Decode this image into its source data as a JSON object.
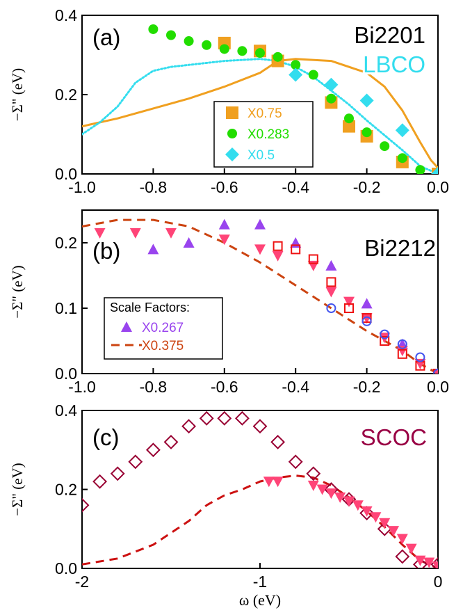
{
  "chart_data": [
    {
      "panel_label": "(a)",
      "type": "scatter",
      "ylabel": "−Σ\" (eV)",
      "xlim": [
        -1.0,
        0.0
      ],
      "ylim": [
        0.0,
        0.4
      ],
      "xticks": [
        "-1.0",
        "-0.8",
        "-0.6",
        "-0.4",
        "-0.2",
        "0.0"
      ],
      "xtick_values": [
        -1.0,
        -0.8,
        -0.6,
        -0.4,
        -0.2,
        0.0
      ],
      "yticks": [
        "0.0",
        "0.2",
        "0.4"
      ],
      "ytick_values": [
        0.0,
        0.2,
        0.4
      ],
      "annotations": [
        {
          "text": "Bi2201",
          "color": "#000000"
        },
        {
          "text": "LBCO",
          "color": "#33DDEE"
        }
      ],
      "legend_placement": "bottom-center",
      "series": [
        {
          "name": "X0.75",
          "marker": "square-filled",
          "color": "#F0A020",
          "x": [
            -0.6,
            -0.5,
            -0.45,
            -0.3,
            -0.25,
            -0.2,
            -0.1,
            0.0
          ],
          "y": [
            0.33,
            0.31,
            0.285,
            0.18,
            0.12,
            0.095,
            0.03,
            0.0
          ]
        },
        {
          "name": "X0.283",
          "marker": "circle-filled",
          "color": "#22DD00",
          "x": [
            -0.8,
            -0.75,
            -0.7,
            -0.65,
            -0.6,
            -0.55,
            -0.5,
            -0.45,
            -0.4,
            -0.35,
            -0.3,
            -0.25,
            -0.2,
            -0.15,
            -0.1,
            -0.05,
            0.0
          ],
          "y": [
            0.365,
            0.35,
            0.335,
            0.325,
            0.315,
            0.31,
            0.305,
            0.295,
            0.275,
            0.25,
            0.19,
            0.14,
            0.105,
            0.07,
            0.04,
            0.01,
            0.0
          ]
        },
        {
          "name": "X0.5",
          "marker": "diamond-filled",
          "color": "#33DDEE",
          "x": [
            -0.4,
            -0.3,
            -0.2,
            -0.1,
            0.0
          ],
          "y": [
            0.25,
            0.225,
            0.185,
            0.11,
            0.0
          ]
        }
      ],
      "curves": [
        {
          "style": "solid",
          "color": "#F0A020",
          "x": [
            -1.0,
            -0.9,
            -0.8,
            -0.7,
            -0.6,
            -0.5,
            -0.45,
            -0.4,
            -0.3,
            -0.2,
            -0.15,
            -0.1,
            -0.05,
            -0.02,
            0.0
          ],
          "y": [
            0.12,
            0.14,
            0.165,
            0.19,
            0.22,
            0.255,
            0.285,
            0.29,
            0.285,
            0.255,
            0.22,
            0.16,
            0.08,
            0.035,
            0.015
          ]
        },
        {
          "style": "dotted",
          "color": "#33DDEE",
          "x": [
            -1.0,
            -0.95,
            -0.9,
            -0.85,
            -0.8,
            -0.75,
            -0.7,
            -0.6,
            -0.5,
            -0.45,
            -0.4,
            -0.35,
            -0.3,
            -0.25,
            -0.2,
            -0.1,
            -0.05,
            0.0
          ],
          "y": [
            0.1,
            0.13,
            0.17,
            0.23,
            0.26,
            0.27,
            0.275,
            0.285,
            0.29,
            0.285,
            0.27,
            0.245,
            0.21,
            0.175,
            0.135,
            0.06,
            0.02,
            0.0
          ]
        }
      ]
    },
    {
      "panel_label": "(b)",
      "type": "scatter",
      "ylabel": "−Σ\" (eV)",
      "xlim": [
        -1.0,
        0.0
      ],
      "ylim": [
        0.0,
        0.25
      ],
      "xticks": [
        "-1.0",
        "-0.8",
        "-0.6",
        "-0.4",
        "-0.2",
        "0.0"
      ],
      "xtick_values": [
        -1.0,
        -0.8,
        -0.6,
        -0.4,
        -0.2,
        0.0
      ],
      "yticks": [
        "0.0",
        "0.1",
        "0.2"
      ],
      "ytick_values": [
        0.0,
        0.1,
        0.2
      ],
      "annotations": [
        {
          "text": "Bi2212",
          "color": "#000000"
        }
      ],
      "legend_title": "Scale Factors:",
      "legend_placement": "bottom-left",
      "series": [
        {
          "name": "X0.267",
          "marker": "triangle-up-filled",
          "color": "#9944EE",
          "x": [
            -0.8,
            -0.7,
            -0.6,
            -0.5,
            -0.4,
            -0.3,
            -0.2,
            -0.1,
            0.0
          ],
          "y": [
            0.19,
            0.2,
            0.228,
            0.228,
            0.2,
            0.165,
            0.107,
            0.045,
            0.0
          ]
        },
        {
          "marker": "triangle-down-filled",
          "color": "#FF4477",
          "x": [
            -0.95,
            -0.85,
            -0.75,
            -0.6,
            -0.5,
            -0.45,
            -0.35,
            -0.3,
            -0.25,
            -0.2,
            -0.15,
            -0.1,
            -0.05,
            0.0
          ],
          "y": [
            0.215,
            0.215,
            0.215,
            0.205,
            0.19,
            0.18,
            0.165,
            0.125,
            0.11,
            0.085,
            0.055,
            0.035,
            0.015,
            0.0
          ]
        },
        {
          "marker": "square-open",
          "color": "#EE1111",
          "x": [
            -0.45,
            -0.4,
            -0.35,
            -0.3,
            -0.25,
            -0.2,
            -0.15,
            -0.1,
            -0.05,
            0.0
          ],
          "y": [
            0.195,
            0.19,
            0.175,
            0.14,
            0.1,
            0.085,
            0.05,
            0.03,
            0.012,
            0.0
          ]
        },
        {
          "marker": "circle-open",
          "color": "#4455EE",
          "x": [
            -0.3,
            -0.2,
            -0.15,
            -0.1,
            -0.05,
            0.0
          ],
          "y": [
            0.1,
            0.08,
            0.06,
            0.045,
            0.025,
            0.0
          ]
        }
      ],
      "curves": [
        {
          "name": "X0.375",
          "style": "dashed",
          "color": "#CC4411",
          "x": [
            -1.0,
            -0.9,
            -0.8,
            -0.7,
            -0.6,
            -0.5,
            -0.4,
            -0.3,
            -0.2,
            -0.1,
            -0.05,
            0.0
          ],
          "y": [
            0.225,
            0.235,
            0.235,
            0.225,
            0.2,
            0.17,
            0.135,
            0.1,
            0.065,
            0.035,
            0.015,
            0.0
          ]
        }
      ]
    },
    {
      "panel_label": "(c)",
      "type": "scatter",
      "ylabel": "−Σ\" (eV)",
      "xlabel": "ω (eV)",
      "xlim": [
        -2.0,
        0.0
      ],
      "ylim": [
        0.0,
        0.4
      ],
      "xticks": [
        "-2",
        "-1",
        "0"
      ],
      "xtick_values": [
        -2,
        -1,
        0
      ],
      "yticks": [
        "0.0",
        "0.2",
        "0.4"
      ],
      "ytick_values": [
        0.0,
        0.2,
        0.4
      ],
      "annotations": [
        {
          "text": "SCOC",
          "color": "#990044"
        }
      ],
      "series": [
        {
          "marker": "diamond-open",
          "color": "#990033",
          "x": [
            -2.0,
            -1.9,
            -1.8,
            -1.7,
            -1.6,
            -1.5,
            -1.4,
            -1.3,
            -1.2,
            -1.1,
            -1.0,
            -0.9,
            -0.8,
            -0.7,
            -0.6,
            -0.5,
            -0.4,
            -0.3,
            -0.2,
            -0.1,
            0.0
          ],
          "y": [
            0.16,
            0.22,
            0.24,
            0.27,
            0.3,
            0.32,
            0.36,
            0.38,
            0.38,
            0.38,
            0.36,
            0.32,
            0.27,
            0.24,
            0.2,
            0.175,
            0.14,
            0.1,
            0.03,
            0.01,
            0.01
          ]
        },
        {
          "marker": "triangle-down-filled",
          "color": "#FF4477",
          "x": [
            -0.95,
            -0.9,
            -0.7,
            -0.65,
            -0.6,
            -0.55,
            -0.5,
            -0.45,
            -0.4,
            -0.35,
            -0.3,
            -0.25,
            -0.2,
            -0.15,
            -0.1,
            -0.05,
            0.0
          ],
          "y": [
            0.22,
            0.22,
            0.21,
            0.2,
            0.19,
            0.18,
            0.17,
            0.16,
            0.145,
            0.13,
            0.115,
            0.095,
            0.075,
            0.05,
            0.02,
            0.015,
            0.005
          ]
        }
      ],
      "curves": [
        {
          "style": "dashed",
          "color": "#CC1111",
          "x": [
            -2.0,
            -1.8,
            -1.6,
            -1.4,
            -1.3,
            -1.2,
            -1.1,
            -1.0,
            -0.9,
            -0.8,
            -0.7,
            -0.6,
            -0.5,
            -0.4,
            -0.3,
            -0.2,
            -0.1,
            0.0
          ],
          "y": [
            0.01,
            0.025,
            0.06,
            0.12,
            0.16,
            0.185,
            0.2,
            0.22,
            0.23,
            0.235,
            0.23,
            0.21,
            0.18,
            0.145,
            0.105,
            0.06,
            0.02,
            0.0
          ]
        }
      ]
    }
  ]
}
